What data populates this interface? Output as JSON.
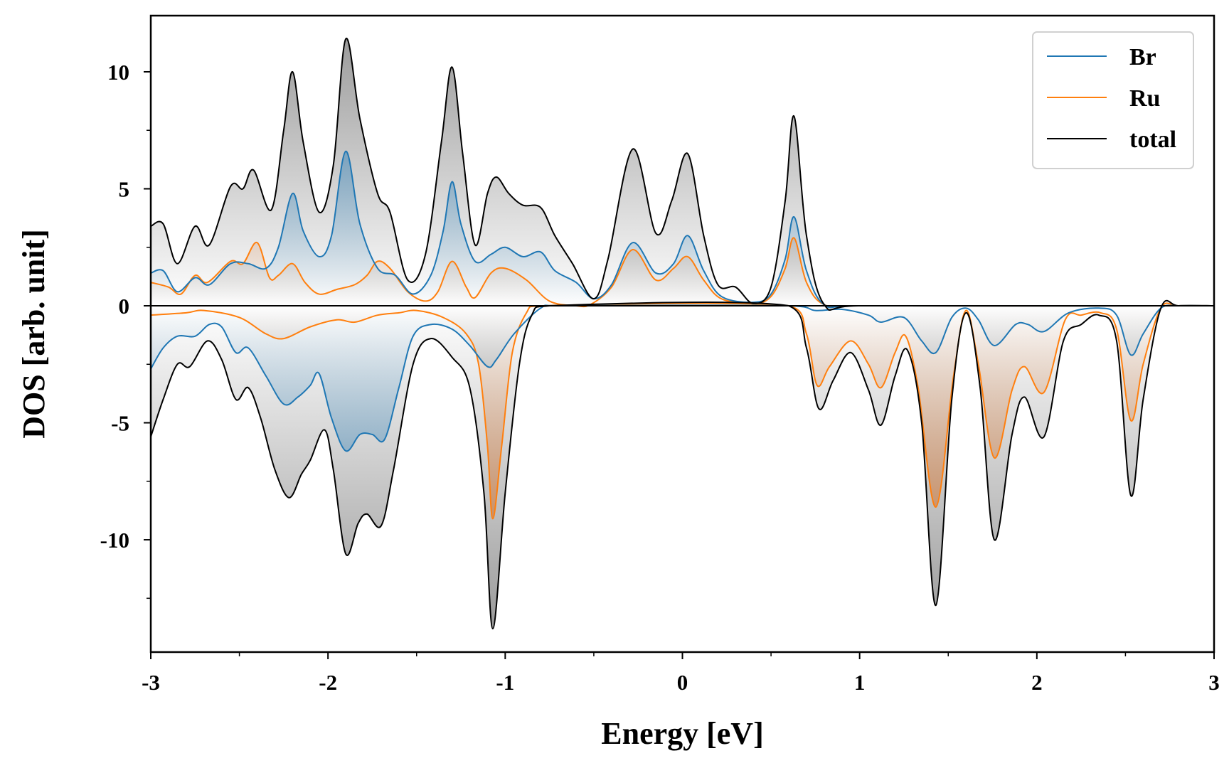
{
  "chart_data": {
    "type": "line",
    "title": "",
    "xlabel": "Energy [eV]",
    "ylabel": "DOS [arb. unit]",
    "xlim": [
      -3,
      3
    ],
    "ylim": [
      -14.8,
      12.4
    ],
    "x_ticks": [
      -3,
      -2,
      -1,
      0,
      1,
      2,
      3
    ],
    "x_tick_labels": [
      "-3",
      "-2",
      "-1",
      "0",
      "1",
      "2",
      "3"
    ],
    "y_ticks": [
      -10,
      -5,
      0,
      5,
      10
    ],
    "y_tick_labels": [
      "-10",
      "-5",
      "0",
      "5",
      "10"
    ],
    "grid": false,
    "legend_position": "top-right",
    "series": [
      {
        "name": "Br",
        "color": "#1f77b4",
        "fill": "#1f77b4",
        "spin_up": [
          [
            -3.0,
            1.4
          ],
          [
            -2.93,
            1.5
          ],
          [
            -2.85,
            0.6
          ],
          [
            -2.75,
            1.2
          ],
          [
            -2.67,
            0.9
          ],
          [
            -2.55,
            1.8
          ],
          [
            -2.45,
            1.8
          ],
          [
            -2.35,
            1.6
          ],
          [
            -2.28,
            2.5
          ],
          [
            -2.2,
            4.8
          ],
          [
            -2.14,
            3.2
          ],
          [
            -2.05,
            2.1
          ],
          [
            -1.98,
            3.0
          ],
          [
            -1.9,
            6.6
          ],
          [
            -1.82,
            3.5
          ],
          [
            -1.72,
            1.6
          ],
          [
            -1.62,
            1.3
          ],
          [
            -1.52,
            0.5
          ],
          [
            -1.42,
            1.3
          ],
          [
            -1.35,
            3.2
          ],
          [
            -1.3,
            5.3
          ],
          [
            -1.25,
            3.5
          ],
          [
            -1.17,
            1.9
          ],
          [
            -1.08,
            2.2
          ],
          [
            -1.0,
            2.5
          ],
          [
            -0.9,
            2.1
          ],
          [
            -0.8,
            2.3
          ],
          [
            -0.72,
            1.5
          ],
          [
            -0.6,
            1.0
          ],
          [
            -0.5,
            0.3
          ],
          [
            -0.4,
            0.9
          ],
          [
            -0.28,
            2.7
          ],
          [
            -0.15,
            1.4
          ],
          [
            -0.05,
            1.8
          ],
          [
            0.03,
            3.0
          ],
          [
            0.12,
            1.5
          ],
          [
            0.22,
            0.4
          ],
          [
            0.4,
            0.15
          ],
          [
            0.5,
            0.5
          ],
          [
            0.58,
            2.0
          ],
          [
            0.63,
            3.8
          ],
          [
            0.7,
            1.5
          ],
          [
            0.8,
            0.05
          ],
          [
            1.0,
            0.0
          ],
          [
            2.7,
            0.0
          ],
          [
            3.0,
            0.0
          ]
        ],
        "spin_down": [
          [
            -3.0,
            -2.7
          ],
          [
            -2.93,
            -1.8
          ],
          [
            -2.85,
            -1.3
          ],
          [
            -2.75,
            -1.3
          ],
          [
            -2.67,
            -0.8
          ],
          [
            -2.6,
            -0.9
          ],
          [
            -2.52,
            -2.0
          ],
          [
            -2.45,
            -1.8
          ],
          [
            -2.35,
            -3.0
          ],
          [
            -2.25,
            -4.2
          ],
          [
            -2.17,
            -3.9
          ],
          [
            -2.1,
            -3.4
          ],
          [
            -2.05,
            -2.9
          ],
          [
            -1.98,
            -4.8
          ],
          [
            -1.9,
            -6.2
          ],
          [
            -1.82,
            -5.5
          ],
          [
            -1.75,
            -5.5
          ],
          [
            -1.68,
            -5.7
          ],
          [
            -1.6,
            -3.5
          ],
          [
            -1.52,
            -1.3
          ],
          [
            -1.42,
            -0.8
          ],
          [
            -1.3,
            -1.0
          ],
          [
            -1.2,
            -1.7
          ],
          [
            -1.1,
            -2.6
          ],
          [
            -1.05,
            -2.3
          ],
          [
            -0.95,
            -1.2
          ],
          [
            -0.8,
            -0.1
          ],
          [
            -0.7,
            0.0
          ],
          [
            0.6,
            0.0
          ],
          [
            0.75,
            -0.2
          ],
          [
            0.9,
            -0.15
          ],
          [
            1.05,
            -0.4
          ],
          [
            1.12,
            -0.7
          ],
          [
            1.25,
            -0.5
          ],
          [
            1.35,
            -1.5
          ],
          [
            1.43,
            -2.0
          ],
          [
            1.52,
            -0.5
          ],
          [
            1.6,
            -0.1
          ],
          [
            1.67,
            -0.6
          ],
          [
            1.76,
            -1.7
          ],
          [
            1.88,
            -0.8
          ],
          [
            1.95,
            -0.8
          ],
          [
            2.04,
            -1.1
          ],
          [
            2.18,
            -0.3
          ],
          [
            2.35,
            -0.1
          ],
          [
            2.45,
            -0.4
          ],
          [
            2.53,
            -2.1
          ],
          [
            2.6,
            -1.2
          ],
          [
            2.7,
            -0.1
          ],
          [
            2.8,
            0.0
          ],
          [
            3.0,
            0.0
          ]
        ]
      },
      {
        "name": "Ru",
        "color": "#ff7f0e",
        "fill": "#d2691e",
        "spin_up": [
          [
            -3.0,
            1.0
          ],
          [
            -2.9,
            0.8
          ],
          [
            -2.83,
            0.5
          ],
          [
            -2.75,
            1.3
          ],
          [
            -2.68,
            1.0
          ],
          [
            -2.55,
            1.9
          ],
          [
            -2.48,
            1.8
          ],
          [
            -2.4,
            2.7
          ],
          [
            -2.33,
            1.2
          ],
          [
            -2.28,
            1.3
          ],
          [
            -2.2,
            1.8
          ],
          [
            -2.13,
            1.0
          ],
          [
            -2.05,
            0.5
          ],
          [
            -1.95,
            0.7
          ],
          [
            -1.85,
            0.9
          ],
          [
            -1.78,
            1.3
          ],
          [
            -1.72,
            1.9
          ],
          [
            -1.65,
            1.6
          ],
          [
            -1.55,
            0.6
          ],
          [
            -1.45,
            0.2
          ],
          [
            -1.38,
            0.6
          ],
          [
            -1.3,
            1.9
          ],
          [
            -1.22,
            0.8
          ],
          [
            -1.17,
            0.35
          ],
          [
            -1.08,
            1.4
          ],
          [
            -1.0,
            1.6
          ],
          [
            -0.88,
            1.1
          ],
          [
            -0.75,
            0.2
          ],
          [
            -0.6,
            0.0
          ],
          [
            -0.52,
            0.05
          ],
          [
            -0.4,
            0.8
          ],
          [
            -0.28,
            2.4
          ],
          [
            -0.15,
            1.1
          ],
          [
            -0.05,
            1.6
          ],
          [
            0.03,
            2.1
          ],
          [
            0.12,
            1.1
          ],
          [
            0.22,
            0.3
          ],
          [
            0.4,
            0.1
          ],
          [
            0.5,
            0.4
          ],
          [
            0.58,
            1.6
          ],
          [
            0.63,
            2.9
          ],
          [
            0.7,
            1.0
          ],
          [
            0.8,
            0.05
          ],
          [
            1.0,
            0.0
          ],
          [
            3.0,
            0.0
          ]
        ],
        "spin_down": [
          [
            -3.0,
            -0.4
          ],
          [
            -2.8,
            -0.3
          ],
          [
            -2.7,
            -0.2
          ],
          [
            -2.5,
            -0.5
          ],
          [
            -2.35,
            -1.2
          ],
          [
            -2.25,
            -1.4
          ],
          [
            -2.1,
            -0.9
          ],
          [
            -1.95,
            -0.6
          ],
          [
            -1.85,
            -0.7
          ],
          [
            -1.72,
            -0.4
          ],
          [
            -1.6,
            -0.3
          ],
          [
            -1.5,
            -0.2
          ],
          [
            -1.35,
            -0.5
          ],
          [
            -1.22,
            -1.2
          ],
          [
            -1.15,
            -2.5
          ],
          [
            -1.1,
            -6.0
          ],
          [
            -1.07,
            -9.1
          ],
          [
            -1.02,
            -6.0
          ],
          [
            -0.96,
            -2.0
          ],
          [
            -0.88,
            -0.3
          ],
          [
            -0.8,
            0.0
          ],
          [
            0.6,
            0.0
          ],
          [
            0.7,
            -1.2
          ],
          [
            0.76,
            -3.4
          ],
          [
            0.83,
            -2.6
          ],
          [
            0.95,
            -1.5
          ],
          [
            1.05,
            -2.5
          ],
          [
            1.12,
            -3.5
          ],
          [
            1.2,
            -2.0
          ],
          [
            1.26,
            -1.3
          ],
          [
            1.33,
            -3.5
          ],
          [
            1.43,
            -8.6
          ],
          [
            1.53,
            -3.0
          ],
          [
            1.6,
            -0.2
          ],
          [
            1.67,
            -2.5
          ],
          [
            1.76,
            -6.5
          ],
          [
            1.86,
            -3.6
          ],
          [
            1.93,
            -2.6
          ],
          [
            2.04,
            -3.7
          ],
          [
            2.16,
            -0.6
          ],
          [
            2.25,
            -0.4
          ],
          [
            2.36,
            -0.3
          ],
          [
            2.45,
            -1.0
          ],
          [
            2.53,
            -4.9
          ],
          [
            2.6,
            -2.5
          ],
          [
            2.7,
            -0.1
          ],
          [
            2.8,
            0.0
          ],
          [
            3.0,
            0.0
          ]
        ]
      },
      {
        "name": "total",
        "color": "#000000",
        "fill": "#808080",
        "spin_up": [
          [
            -3.0,
            3.4
          ],
          [
            -2.93,
            3.5
          ],
          [
            -2.85,
            1.8
          ],
          [
            -2.75,
            3.4
          ],
          [
            -2.67,
            2.6
          ],
          [
            -2.55,
            5.1
          ],
          [
            -2.48,
            5.0
          ],
          [
            -2.42,
            5.8
          ],
          [
            -2.32,
            4.1
          ],
          [
            -2.25,
            7.5
          ],
          [
            -2.2,
            10.0
          ],
          [
            -2.14,
            7.0
          ],
          [
            -2.05,
            4.0
          ],
          [
            -1.97,
            6.0
          ],
          [
            -1.9,
            11.4
          ],
          [
            -1.82,
            8.0
          ],
          [
            -1.72,
            4.8
          ],
          [
            -1.65,
            4.0
          ],
          [
            -1.55,
            1.1
          ],
          [
            -1.45,
            2.2
          ],
          [
            -1.36,
            7.0
          ],
          [
            -1.3,
            10.2
          ],
          [
            -1.24,
            6.5
          ],
          [
            -1.17,
            2.6
          ],
          [
            -1.1,
            4.8
          ],
          [
            -1.05,
            5.5
          ],
          [
            -0.98,
            4.8
          ],
          [
            -0.9,
            4.3
          ],
          [
            -0.8,
            4.2
          ],
          [
            -0.72,
            3.0
          ],
          [
            -0.62,
            1.8
          ],
          [
            -0.5,
            0.3
          ],
          [
            -0.42,
            2.0
          ],
          [
            -0.28,
            6.7
          ],
          [
            -0.15,
            3.1
          ],
          [
            -0.06,
            4.5
          ],
          [
            0.03,
            6.5
          ],
          [
            0.12,
            3.0
          ],
          [
            0.2,
            0.9
          ],
          [
            0.3,
            0.8
          ],
          [
            0.4,
            0.1
          ],
          [
            0.5,
            0.8
          ],
          [
            0.58,
            4.5
          ],
          [
            0.63,
            8.1
          ],
          [
            0.7,
            3.0
          ],
          [
            0.8,
            0.05
          ],
          [
            1.0,
            0.0
          ],
          [
            3.0,
            0.0
          ]
        ],
        "spin_down": [
          [
            -3.0,
            -5.6
          ],
          [
            -2.93,
            -4.0
          ],
          [
            -2.85,
            -2.5
          ],
          [
            -2.78,
            -2.6
          ],
          [
            -2.68,
            -1.5
          ],
          [
            -2.6,
            -2.3
          ],
          [
            -2.52,
            -4.0
          ],
          [
            -2.45,
            -3.5
          ],
          [
            -2.38,
            -4.8
          ],
          [
            -2.3,
            -7.0
          ],
          [
            -2.22,
            -8.2
          ],
          [
            -2.15,
            -7.2
          ],
          [
            -2.1,
            -6.6
          ],
          [
            -2.02,
            -5.3
          ],
          [
            -1.97,
            -7.0
          ],
          [
            -1.9,
            -10.6
          ],
          [
            -1.83,
            -9.3
          ],
          [
            -1.78,
            -8.9
          ],
          [
            -1.7,
            -9.4
          ],
          [
            -1.63,
            -7.0
          ],
          [
            -1.52,
            -2.5
          ],
          [
            -1.42,
            -1.4
          ],
          [
            -1.3,
            -2.2
          ],
          [
            -1.2,
            -3.5
          ],
          [
            -1.12,
            -8.0
          ],
          [
            -1.07,
            -13.8
          ],
          [
            -1.0,
            -8.0
          ],
          [
            -0.92,
            -2.5
          ],
          [
            -0.85,
            -0.4
          ],
          [
            -0.75,
            0.0
          ],
          [
            0.6,
            0.0
          ],
          [
            0.7,
            -1.8
          ],
          [
            0.77,
            -4.4
          ],
          [
            0.85,
            -3.2
          ],
          [
            0.95,
            -2.0
          ],
          [
            1.05,
            -3.6
          ],
          [
            1.12,
            -5.1
          ],
          [
            1.2,
            -3.0
          ],
          [
            1.27,
            -1.9
          ],
          [
            1.35,
            -5.0
          ],
          [
            1.43,
            -12.8
          ],
          [
            1.52,
            -4.0
          ],
          [
            1.6,
            -0.3
          ],
          [
            1.68,
            -3.5
          ],
          [
            1.76,
            -10.0
          ],
          [
            1.86,
            -5.5
          ],
          [
            1.93,
            -3.9
          ],
          [
            2.04,
            -5.6
          ],
          [
            2.15,
            -1.5
          ],
          [
            2.25,
            -0.8
          ],
          [
            2.35,
            -0.4
          ],
          [
            2.45,
            -1.5
          ],
          [
            2.53,
            -8.1
          ],
          [
            2.6,
            -4.0
          ],
          [
            2.7,
            -0.1
          ],
          [
            2.8,
            0.0
          ],
          [
            3.0,
            0.0
          ]
        ]
      }
    ]
  }
}
